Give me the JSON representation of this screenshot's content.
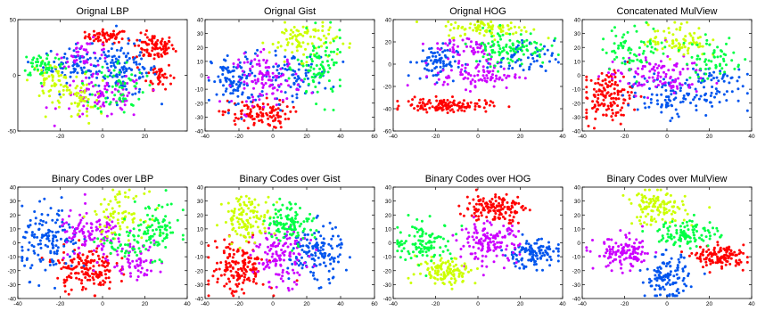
{
  "figure": {
    "colors": [
      "#ff0000",
      "#0055ee",
      "#cc00ff",
      "#ccff00",
      "#00ff44"
    ]
  },
  "chart_data": [
    {
      "type": "scatter",
      "title": "Orignal LBP",
      "xlim": [
        -40,
        40
      ],
      "ylim": [
        -50,
        50
      ],
      "xticks": [
        -20,
        0,
        20
      ],
      "yticks": [
        -50,
        0,
        50
      ],
      "grid": false,
      "legend": "none",
      "clusters": [
        {
          "cx": 2,
          "cy": 35,
          "sx": 5,
          "sy": 3,
          "n": 60,
          "color": 0
        },
        {
          "cx": 24,
          "cy": 25,
          "sx": 5,
          "sy": 6,
          "n": 90,
          "color": 0
        },
        {
          "cx": 27,
          "cy": 0,
          "sx": 3,
          "sy": 6,
          "n": 40,
          "color": 0
        },
        {
          "cx": -12,
          "cy": 10,
          "sx": 8,
          "sy": 8,
          "n": 80,
          "color": 1
        },
        {
          "cx": 10,
          "cy": 5,
          "sx": 8,
          "sy": 12,
          "n": 110,
          "color": 1
        },
        {
          "cx": 0,
          "cy": -20,
          "sx": 10,
          "sy": 10,
          "n": 90,
          "color": 2
        },
        {
          "cx": -8,
          "cy": 20,
          "sx": 6,
          "sy": 6,
          "n": 40,
          "color": 2
        },
        {
          "cx": -24,
          "cy": -5,
          "sx": 5,
          "sy": 8,
          "n": 60,
          "color": 3
        },
        {
          "cx": -10,
          "cy": -25,
          "sx": 5,
          "sy": 10,
          "n": 50,
          "color": 3
        },
        {
          "cx": -28,
          "cy": 10,
          "sx": 5,
          "sy": 6,
          "n": 50,
          "color": 4
        },
        {
          "cx": 8,
          "cy": -10,
          "sx": 6,
          "sy": 12,
          "n": 60,
          "color": 4
        }
      ]
    },
    {
      "type": "scatter",
      "title": "Orignal Gist",
      "xlim": [
        -40,
        60
      ],
      "ylim": [
        -40,
        40
      ],
      "xticks": [
        -40,
        -20,
        0,
        20,
        40,
        60
      ],
      "yticks": [
        -40,
        -30,
        -20,
        -10,
        0,
        10,
        20,
        30,
        40
      ],
      "grid": false,
      "legend": "none",
      "clusters": [
        {
          "cx": -10,
          "cy": -28,
          "sx": 10,
          "sy": 5,
          "n": 110,
          "color": 0
        },
        {
          "cx": -22,
          "cy": -5,
          "sx": 7,
          "sy": 10,
          "n": 100,
          "color": 1
        },
        {
          "cx": 10,
          "cy": 0,
          "sx": 12,
          "sy": 8,
          "n": 90,
          "color": 1
        },
        {
          "cx": -3,
          "cy": -3,
          "sx": 10,
          "sy": 9,
          "n": 110,
          "color": 2
        },
        {
          "cx": 18,
          "cy": 25,
          "sx": 10,
          "sy": 7,
          "n": 90,
          "color": 3
        },
        {
          "cx": 28,
          "cy": 5,
          "sx": 7,
          "sy": 12,
          "n": 90,
          "color": 4
        }
      ]
    },
    {
      "type": "scatter",
      "title": "Orignal HOG",
      "xlim": [
        -40,
        40
      ],
      "ylim": [
        -60,
        40
      ],
      "xticks": [
        -40,
        -20,
        0,
        20,
        40
      ],
      "yticks": [
        -60,
        -40,
        -20,
        0,
        20,
        40
      ],
      "grid": false,
      "legend": "none",
      "clusters": [
        {
          "cx": -15,
          "cy": -37,
          "sx": 10,
          "sy": 3,
          "n": 130,
          "color": 0
        },
        {
          "cx": -20,
          "cy": 2,
          "sx": 5,
          "sy": 8,
          "n": 80,
          "color": 1
        },
        {
          "cx": 20,
          "cy": 5,
          "sx": 8,
          "sy": 8,
          "n": 60,
          "color": 1
        },
        {
          "cx": 0,
          "cy": -10,
          "sx": 10,
          "sy": 6,
          "n": 90,
          "color": 2
        },
        {
          "cx": -5,
          "cy": 15,
          "sx": 8,
          "sy": 6,
          "n": 50,
          "color": 2
        },
        {
          "cx": 5,
          "cy": 32,
          "sx": 10,
          "sy": 4,
          "n": 90,
          "color": 3
        },
        {
          "cx": 15,
          "cy": 15,
          "sx": 9,
          "sy": 8,
          "n": 100,
          "color": 4
        }
      ]
    },
    {
      "type": "scatter",
      "title": "Concatenated MulView",
      "xlim": [
        -40,
        40
      ],
      "ylim": [
        -40,
        40
      ],
      "xticks": [
        -40,
        -20,
        0,
        20,
        40
      ],
      "yticks": [
        -40,
        -30,
        -20,
        -10,
        0,
        10,
        20,
        30,
        40
      ],
      "grid": false,
      "legend": "none",
      "clusters": [
        {
          "cx": -28,
          "cy": -15,
          "sx": 6,
          "sy": 9,
          "n": 140,
          "color": 0
        },
        {
          "cx": 0,
          "cy": -15,
          "sx": 10,
          "sy": 7,
          "n": 100,
          "color": 1
        },
        {
          "cx": 20,
          "cy": -5,
          "sx": 8,
          "sy": 8,
          "n": 60,
          "color": 1
        },
        {
          "cx": -5,
          "cy": 0,
          "sx": 12,
          "sy": 7,
          "n": 110,
          "color": 2
        },
        {
          "cx": 5,
          "cy": 25,
          "sx": 7,
          "sy": 6,
          "n": 80,
          "color": 3
        },
        {
          "cx": -15,
          "cy": 20,
          "sx": 8,
          "sy": 8,
          "n": 70,
          "color": 4
        },
        {
          "cx": 22,
          "cy": 12,
          "sx": 7,
          "sy": 8,
          "n": 60,
          "color": 4
        }
      ]
    },
    {
      "type": "scatter",
      "title": "Binary Codes over LBP",
      "xlim": [
        -40,
        40
      ],
      "ylim": [
        -40,
        40
      ],
      "xticks": [
        -40,
        -20,
        0,
        20,
        40
      ],
      "yticks": [
        -40,
        -30,
        -20,
        -10,
        0,
        10,
        20,
        30,
        40
      ],
      "grid": false,
      "legend": "none",
      "clusters": [
        {
          "cx": -8,
          "cy": -18,
          "sx": 7,
          "sy": 8,
          "n": 160,
          "color": 0
        },
        {
          "cx": -25,
          "cy": 0,
          "sx": 7,
          "sy": 12,
          "n": 140,
          "color": 1
        },
        {
          "cx": -5,
          "cy": 5,
          "sx": 8,
          "sy": 9,
          "n": 110,
          "color": 2
        },
        {
          "cx": 15,
          "cy": -12,
          "sx": 7,
          "sy": 7,
          "n": 60,
          "color": 2
        },
        {
          "cx": 8,
          "cy": 20,
          "sx": 6,
          "sy": 8,
          "n": 80,
          "color": 3
        },
        {
          "cx": 25,
          "cy": 10,
          "sx": 6,
          "sy": 10,
          "n": 90,
          "color": 4
        },
        {
          "cx": 10,
          "cy": -2,
          "sx": 6,
          "sy": 6,
          "n": 40,
          "color": 4
        }
      ]
    },
    {
      "type": "scatter",
      "title": "Binary Codes over Gist",
      "xlim": [
        -40,
        60
      ],
      "ylim": [
        -40,
        40
      ],
      "xticks": [
        -40,
        -20,
        0,
        20,
        40,
        60
      ],
      "yticks": [
        -40,
        -30,
        -20,
        -10,
        0,
        10,
        20,
        30,
        40
      ],
      "grid": false,
      "legend": "none",
      "clusters": [
        {
          "cx": -20,
          "cy": -18,
          "sx": 8,
          "sy": 10,
          "n": 160,
          "color": 0
        },
        {
          "cx": 25,
          "cy": -8,
          "sx": 8,
          "sy": 10,
          "n": 140,
          "color": 1
        },
        {
          "cx": 5,
          "cy": -10,
          "sx": 8,
          "sy": 10,
          "n": 130,
          "color": 2
        },
        {
          "cx": -15,
          "cy": 18,
          "sx": 7,
          "sy": 8,
          "n": 120,
          "color": 3
        },
        {
          "cx": 10,
          "cy": 15,
          "sx": 7,
          "sy": 7,
          "n": 110,
          "color": 4
        }
      ]
    },
    {
      "type": "scatter",
      "title": "Binary Codes over HOG",
      "xlim": [
        -40,
        40
      ],
      "ylim": [
        -40,
        40
      ],
      "xticks": [
        -40,
        -20,
        0,
        20,
        40
      ],
      "yticks": [
        -40,
        -30,
        -20,
        -10,
        0,
        10,
        20,
        30,
        40
      ],
      "grid": false,
      "legend": "none",
      "clusters": [
        {
          "cx": 8,
          "cy": 25,
          "sx": 7,
          "sy": 5,
          "n": 140,
          "color": 0
        },
        {
          "cx": 25,
          "cy": -8,
          "sx": 7,
          "sy": 5,
          "n": 120,
          "color": 1
        },
        {
          "cx": 5,
          "cy": 0,
          "sx": 7,
          "sy": 7,
          "n": 140,
          "color": 2
        },
        {
          "cx": -15,
          "cy": -20,
          "sx": 7,
          "sy": 5,
          "n": 120,
          "color": 3
        },
        {
          "cx": -25,
          "cy": 0,
          "sx": 7,
          "sy": 7,
          "n": 110,
          "color": 4
        }
      ]
    },
    {
      "type": "scatter",
      "title": "Binary Codes over MulView",
      "xlim": [
        -40,
        40
      ],
      "ylim": [
        -40,
        40
      ],
      "xticks": [
        -40,
        -20,
        0,
        20,
        40
      ],
      "yticks": [
        -40,
        -30,
        -20,
        -10,
        0,
        10,
        20,
        30,
        40
      ],
      "grid": false,
      "legend": "none",
      "clusters": [
        {
          "cx": 25,
          "cy": -10,
          "sx": 6,
          "sy": 4,
          "n": 130,
          "color": 0
        },
        {
          "cx": 0,
          "cy": -25,
          "sx": 5,
          "sy": 8,
          "n": 120,
          "color": 1
        },
        {
          "cx": -20,
          "cy": -8,
          "sx": 7,
          "sy": 6,
          "n": 120,
          "color": 2
        },
        {
          "cx": -5,
          "cy": 25,
          "sx": 7,
          "sy": 6,
          "n": 120,
          "color": 3
        },
        {
          "cx": 10,
          "cy": 7,
          "sx": 7,
          "sy": 5,
          "n": 110,
          "color": 4
        }
      ]
    }
  ]
}
